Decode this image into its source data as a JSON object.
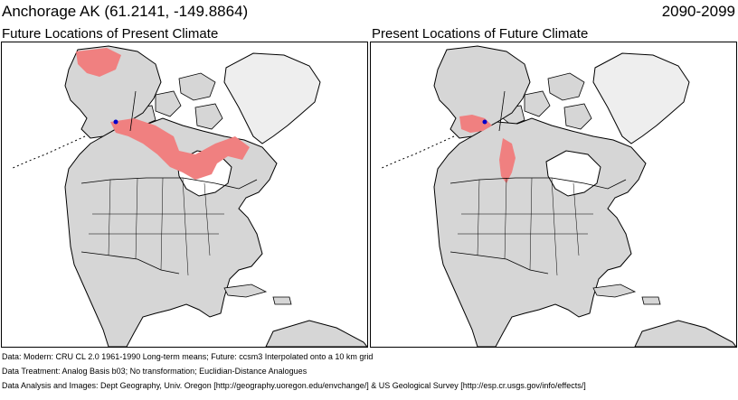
{
  "header": {
    "location": "Anchorage AK  (61.2141, -149.8864)",
    "period": "2090-2099"
  },
  "panels": [
    {
      "title": "Future Locations of Present Climate"
    },
    {
      "title": "Present Locations of Future Climate"
    }
  ],
  "footer": {
    "data_line": "Data:  Modern: CRU CL 2.0 1961-1990 Long-term means; Future: ccsm3 Interpolated onto a 10 km grid",
    "treatment_line": "Data Treatment:  Analog Basis b03; No transformation; Euclidian-Distance Analogues",
    "credits_line": "Data Analysis and Images:  Dept Geography, Univ. Oregon [http://geography.uoregon.edu/envchange/] & US Geological Survey [http://esp.cr.usgs.gov/info/effects/]"
  },
  "colors": {
    "land": "#d6d6d6",
    "ice_cap": "#eeeeee",
    "ocean": "#ffffff",
    "analog_region": "#f08080",
    "site_marker": "#0000cc",
    "borders": "#000000"
  }
}
